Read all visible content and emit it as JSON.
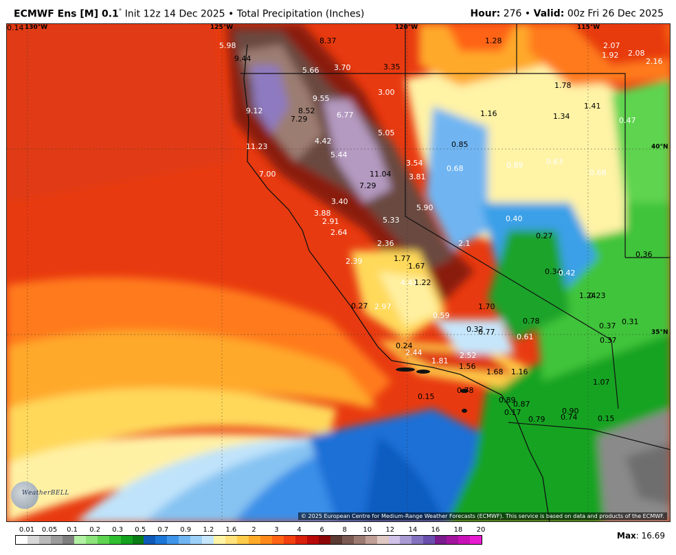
{
  "header": {
    "model": "ECMWF Ens [M] 0.1",
    "degree": "°",
    "init": "Init 12z 14 Dec 2025",
    "bullet": "•",
    "product": "Total Precipitation (Inches)",
    "hour_label": "Hour:",
    "hour_value": "276",
    "valid_label": "Valid:",
    "valid_value": "00z Fri 26 Dec 2025"
  },
  "map": {
    "coords": [
      {
        "text": "130°W"
      },
      {
        "text": "125°W"
      },
      {
        "text": "120°W"
      },
      {
        "text": "115°W"
      },
      {
        "text": "40°N"
      },
      {
        "text": "35°N"
      }
    ],
    "labels": [
      {
        "text": "5.98",
        "c": "w"
      },
      {
        "text": "8.37",
        "c": "k"
      },
      {
        "text": "9.44",
        "c": "k"
      },
      {
        "text": "5.66",
        "c": "w"
      },
      {
        "text": "3.70",
        "c": "w"
      },
      {
        "text": "3.35",
        "c": "k"
      },
      {
        "text": "1.28",
        "c": "k"
      },
      {
        "text": "2.07",
        "c": "w"
      },
      {
        "text": "1.92",
        "c": "w"
      },
      {
        "text": "2.08",
        "c": "w"
      },
      {
        "text": "2.16",
        "c": "w"
      },
      {
        "text": "3.00",
        "c": "w"
      },
      {
        "text": "9.55",
        "c": "w"
      },
      {
        "text": "1.78",
        "c": "k"
      },
      {
        "text": "9.12",
        "c": "w"
      },
      {
        "text": "8.52",
        "c": "k"
      },
      {
        "text": "6.77",
        "c": "w"
      },
      {
        "text": "1.16",
        "c": "k"
      },
      {
        "text": "1.34",
        "c": "k"
      },
      {
        "text": "1.41",
        "c": "k"
      },
      {
        "text": "7.29",
        "c": "k"
      },
      {
        "text": "0.47",
        "c": "w"
      },
      {
        "text": "5.05",
        "c": "w"
      },
      {
        "text": "11.23",
        "c": "w"
      },
      {
        "text": "4.42",
        "c": "w"
      },
      {
        "text": "0.85",
        "c": "k"
      },
      {
        "text": "5.44",
        "c": "w"
      },
      {
        "text": "3.54",
        "c": "w"
      },
      {
        "text": "0.68",
        "c": "w"
      },
      {
        "text": "0.89",
        "c": "w"
      },
      {
        "text": "0.63",
        "c": "w"
      },
      {
        "text": "0.68",
        "c": "w"
      },
      {
        "text": "7.00",
        "c": "w"
      },
      {
        "text": "11.04",
        "c": "k"
      },
      {
        "text": "3.81",
        "c": "w"
      },
      {
        "text": "7.29",
        "c": "k"
      },
      {
        "text": "3.40",
        "c": "w"
      },
      {
        "text": "5.90",
        "c": "w"
      },
      {
        "text": "0.40",
        "c": "w"
      },
      {
        "text": "3.88",
        "c": "w"
      },
      {
        "text": "2.91",
        "c": "w"
      },
      {
        "text": "5.33",
        "c": "w"
      },
      {
        "text": "2.64",
        "c": "w"
      },
      {
        "text": "0.27",
        "c": "k"
      },
      {
        "text": "2.1",
        "c": "w"
      },
      {
        "text": "2.36",
        "c": "w"
      },
      {
        "text": "0.36",
        "c": "k"
      },
      {
        "text": "2.39",
        "c": "w"
      },
      {
        "text": "1.77",
        "c": "k"
      },
      {
        "text": "1.67",
        "c": "k"
      },
      {
        "text": "0.34",
        "c": "k"
      },
      {
        "text": "0.42",
        "c": "w"
      },
      {
        "text": "4.41",
        "c": "w"
      },
      {
        "text": "1.22",
        "c": "k"
      },
      {
        "text": "1.24",
        "c": "k"
      },
      {
        "text": "0.23",
        "c": "k"
      },
      {
        "text": "0.27",
        "c": "k"
      },
      {
        "text": "2.97",
        "c": "w"
      },
      {
        "text": "1.70",
        "c": "k"
      },
      {
        "text": "0.59",
        "c": "w"
      },
      {
        "text": "0.78",
        "c": "k"
      },
      {
        "text": "0.37",
        "c": "k"
      },
      {
        "text": "0.31",
        "c": "k"
      },
      {
        "text": "0.32",
        "c": "k"
      },
      {
        "text": "0.77",
        "c": "k"
      },
      {
        "text": "0.61",
        "c": "w"
      },
      {
        "text": "0.37",
        "c": "k"
      },
      {
        "text": "0.24",
        "c": "k"
      },
      {
        "text": "2.44",
        "c": "w"
      },
      {
        "text": "2.52",
        "c": "w"
      },
      {
        "text": "1.81",
        "c": "w"
      },
      {
        "text": "1.56",
        "c": "k"
      },
      {
        "text": "1.68",
        "c": "k"
      },
      {
        "text": "1.16",
        "c": "k"
      },
      {
        "text": "1.07",
        "c": "k"
      },
      {
        "text": "0.15",
        "c": "k"
      },
      {
        "text": "0.78",
        "c": "k"
      },
      {
        "text": "0.89",
        "c": "k"
      },
      {
        "text": "0.87",
        "c": "k"
      },
      {
        "text": "0.90",
        "c": "k"
      },
      {
        "text": "0.17",
        "c": "k"
      },
      {
        "text": "0.79",
        "c": "k"
      },
      {
        "text": "0.74",
        "c": "k"
      },
      {
        "text": "0.15",
        "c": "k"
      },
      {
        "text": "0.14",
        "c": "k"
      }
    ],
    "credit": "© 2025 European Centre for Medium-Range Weather Forecasts (ECMWF). This service is based on data and products of the ECMWF.",
    "logo_text": "WeatherBELL"
  },
  "scale": {
    "ticks": [
      "0.01",
      "0.05",
      "0.1",
      "0.2",
      "0.3",
      "0.5",
      "0.7",
      "0.9",
      "1.2",
      "1.6",
      "2",
      "3",
      "4",
      "6",
      "8",
      "10",
      "12",
      "14",
      "16",
      "18",
      "20"
    ],
    "colors": [
      "#ffffff",
      "#d8d8d8",
      "#b9b9b9",
      "#9c9c9c",
      "#7f7f7f",
      "#b2f0a4",
      "#8ce37a",
      "#5ed450",
      "#2fbf2f",
      "#12a21e",
      "#0a7d16",
      "#0e5ab8",
      "#1b76d8",
      "#3e95ea",
      "#6fb5f2",
      "#9dd0f7",
      "#c6e6fb",
      "#fff4a6",
      "#ffe27a",
      "#ffcc4a",
      "#ffaa28",
      "#ff8a1a",
      "#ff6414",
      "#f2400f",
      "#d8200b",
      "#b80a08",
      "#8c0606",
      "#5a3a32",
      "#7a5a52",
      "#9b7b72",
      "#bf9f96",
      "#e0c8c2",
      "#cfc2e6",
      "#a99ad4",
      "#8572bf",
      "#6a4fae",
      "#7a1b8e",
      "#a2149e",
      "#c812b8",
      "#e81ad2"
    ],
    "max_label": "Max",
    "max_value": "16.69"
  }
}
